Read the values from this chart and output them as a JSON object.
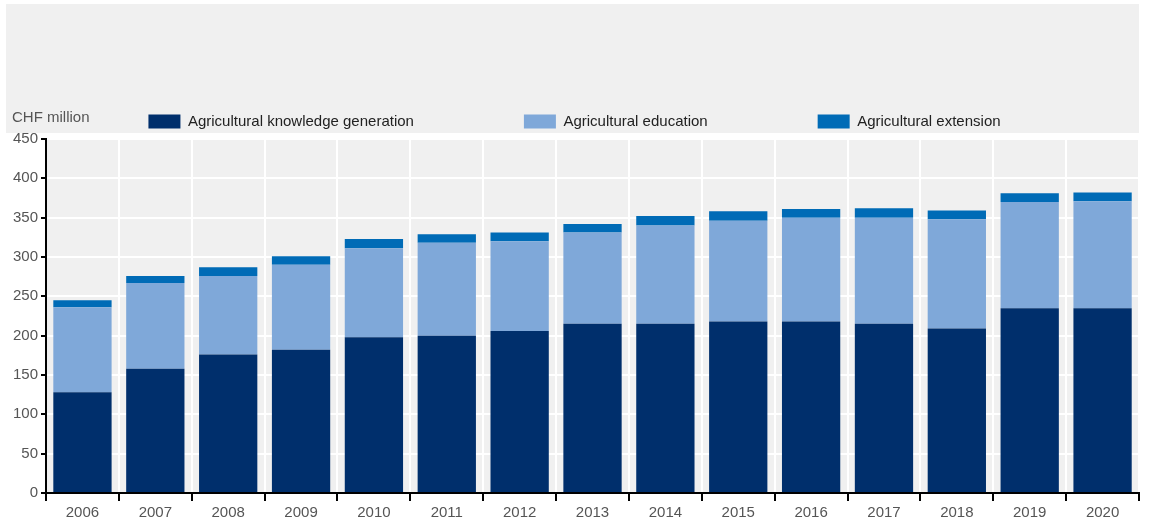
{
  "chart_data": {
    "type": "bar",
    "stacked": true,
    "ylabel": "CHF million",
    "categories": [
      "2006",
      "2007",
      "2008",
      "2009",
      "2010",
      "2011",
      "2012",
      "2013",
      "2014",
      "2015",
      "2016",
      "2017",
      "2018",
      "2019",
      "2020"
    ],
    "series": [
      {
        "name": "Agricultural knowledge generation",
        "color": "#002f6c",
        "values": [
          128,
          158,
          176,
          182,
          198,
          200,
          206,
          215,
          215,
          218,
          218,
          215,
          209,
          235,
          235
        ]
      },
      {
        "name": "Agricultural education",
        "color": "#7fa8d9",
        "values": [
          108,
          109,
          100,
          108,
          113,
          118,
          114,
          116,
          125,
          128,
          132,
          135,
          139,
          135,
          136
        ]
      },
      {
        "name": "Agricultural extension",
        "color": "#006bb6",
        "values": [
          9,
          9,
          11,
          11,
          12,
          11,
          11,
          11,
          12,
          12,
          11,
          12,
          11,
          11,
          11
        ]
      }
    ],
    "ylim": [
      0,
      450
    ],
    "yticks": [
      0,
      50,
      100,
      150,
      200,
      250,
      300,
      350,
      400,
      450
    ],
    "grid": true,
    "legend": "top"
  }
}
